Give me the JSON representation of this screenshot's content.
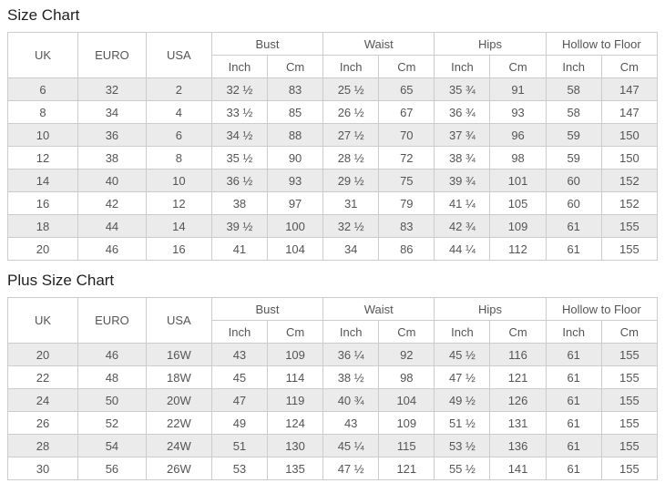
{
  "page": {
    "background": "#ffffff",
    "body_text_color": "#555555",
    "title_color": "#1f1f1f",
    "border_color": "#cccccc",
    "stripe_color": "#ebebeb"
  },
  "tables": [
    {
      "title": "Size Chart",
      "headers": {
        "uk": "UK",
        "euro": "EURO",
        "usa": "USA",
        "bust": "Bust",
        "waist": "Waist",
        "hips": "Hips",
        "hollow_to_floor": "Hollow to Floor",
        "inch": "Inch",
        "cm": "Cm"
      },
      "rows": [
        [
          "6",
          "32",
          "2",
          "32 ½",
          "83",
          "25 ½",
          "65",
          "35 ¾",
          "91",
          "58",
          "147"
        ],
        [
          "8",
          "34",
          "4",
          "33 ½",
          "85",
          "26 ½",
          "67",
          "36 ¾",
          "93",
          "58",
          "147"
        ],
        [
          "10",
          "36",
          "6",
          "34 ½",
          "88",
          "27 ½",
          "70",
          "37 ¾",
          "96",
          "59",
          "150"
        ],
        [
          "12",
          "38",
          "8",
          "35 ½",
          "90",
          "28 ½",
          "72",
          "38 ¾",
          "98",
          "59",
          "150"
        ],
        [
          "14",
          "40",
          "10",
          "36 ½",
          "93",
          "29 ½",
          "75",
          "39 ¾",
          "101",
          "60",
          "152"
        ],
        [
          "16",
          "42",
          "12",
          "38",
          "97",
          "31",
          "79",
          "41 ¼",
          "105",
          "60",
          "152"
        ],
        [
          "18",
          "44",
          "14",
          "39 ½",
          "100",
          "32 ½",
          "83",
          "42 ¾",
          "109",
          "61",
          "155"
        ],
        [
          "20",
          "46",
          "16",
          "41",
          "104",
          "34",
          "86",
          "44 ¼",
          "112",
          "61",
          "155"
        ]
      ]
    },
    {
      "title": "Plus Size Chart",
      "headers": {
        "uk": "UK",
        "euro": "EURO",
        "usa": "USA",
        "bust": "Bust",
        "waist": "Waist",
        "hips": "Hips",
        "hollow_to_floor": "Hollow to Floor",
        "inch": "Inch",
        "cm": "Cm"
      },
      "rows": [
        [
          "20",
          "46",
          "16W",
          "43",
          "109",
          "36 ¼",
          "92",
          "45 ½",
          "116",
          "61",
          "155"
        ],
        [
          "22",
          "48",
          "18W",
          "45",
          "114",
          "38 ½",
          "98",
          "47 ½",
          "121",
          "61",
          "155"
        ],
        [
          "24",
          "50",
          "20W",
          "47",
          "119",
          "40 ¾",
          "104",
          "49 ½",
          "126",
          "61",
          "155"
        ],
        [
          "26",
          "52",
          "22W",
          "49",
          "124",
          "43",
          "109",
          "51 ½",
          "131",
          "61",
          "155"
        ],
        [
          "28",
          "54",
          "24W",
          "51",
          "130",
          "45 ¼",
          "115",
          "53 ½",
          "136",
          "61",
          "155"
        ],
        [
          "30",
          "56",
          "26W",
          "53",
          "135",
          "47 ½",
          "121",
          "55 ½",
          "141",
          "61",
          "155"
        ]
      ]
    }
  ]
}
